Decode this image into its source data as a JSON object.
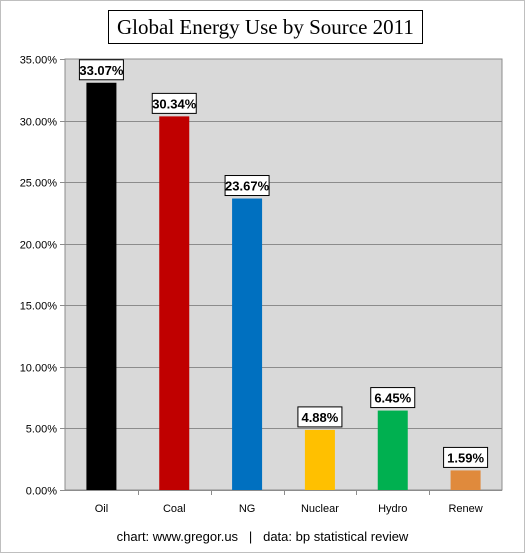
{
  "chart_data": {
    "type": "bar",
    "title": "Global Energy Use by Source 2011",
    "xlabel": "",
    "ylabel": "",
    "categories": [
      "Oil",
      "Coal",
      "NG",
      "Nuclear",
      "Hydro",
      "Renew"
    ],
    "values": [
      33.07,
      30.34,
      23.67,
      4.88,
      6.45,
      1.59
    ],
    "value_labels": [
      "33.07%",
      "30.34%",
      "23.67%",
      "4.88%",
      "6.45%",
      "1.59%"
    ],
    "colors": [
      "#000000",
      "#c00000",
      "#0070c0",
      "#ffc000",
      "#00b050",
      "#e08a3c"
    ],
    "ylim": [
      0,
      35
    ],
    "yticks": [
      0,
      5,
      10,
      15,
      20,
      25,
      30,
      35
    ],
    "ytick_labels": [
      "0.00%",
      "5.00%",
      "10.00%",
      "15.00%",
      "20.00%",
      "25.00%",
      "30.00%",
      "35.00%"
    ],
    "grid": true,
    "plot_background": "#d9d9d9",
    "legend": "none"
  },
  "footer": {
    "source_credit": "chart: www.gregor.us   |   data: bp statistical review"
  }
}
